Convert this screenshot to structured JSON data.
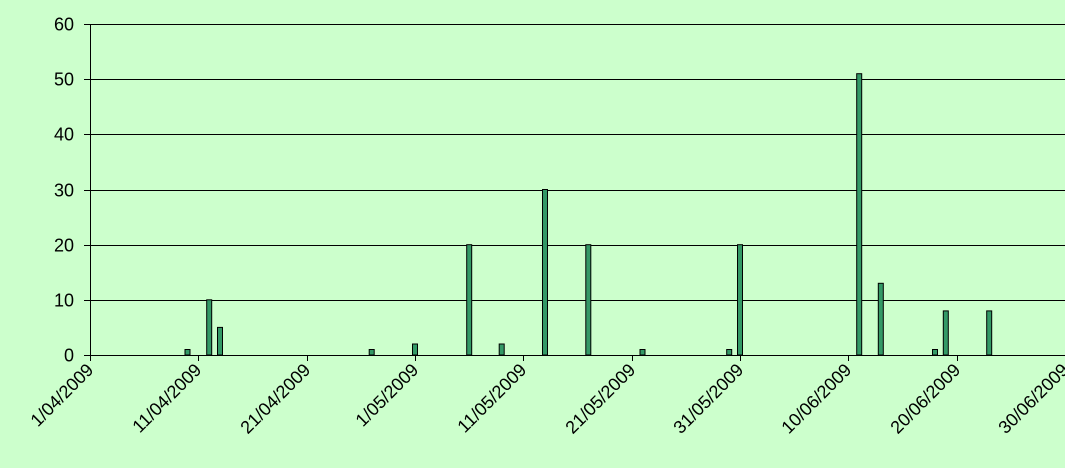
{
  "chart_data": {
    "type": "bar",
    "title": "",
    "xlabel": "",
    "ylabel": "",
    "ylim": [
      0,
      60
    ],
    "yticks": [
      "0",
      "10",
      "20",
      "30",
      "40",
      "50",
      "60"
    ],
    "x_range": [
      "2009-04-01",
      "2009-06-30"
    ],
    "xticks": [
      {
        "date": "2009-04-01",
        "label": "1/04/2009"
      },
      {
        "date": "2009-04-11",
        "label": "11/04/2009"
      },
      {
        "date": "2009-04-21",
        "label": "21/04/2009"
      },
      {
        "date": "2009-05-01",
        "label": "1/05/2009"
      },
      {
        "date": "2009-05-11",
        "label": "11/05/2009"
      },
      {
        "date": "2009-05-21",
        "label": "21/05/2009"
      },
      {
        "date": "2009-05-31",
        "label": "31/05/2009"
      },
      {
        "date": "2009-06-10",
        "label": "10/06/2009"
      },
      {
        "date": "2009-06-20",
        "label": "20/06/2009"
      },
      {
        "date": "2009-06-30",
        "label": "30/06/2009"
      }
    ],
    "series": [
      {
        "color": "#339966",
        "points": [
          {
            "x": "2009-04-10",
            "y": 1
          },
          {
            "x": "2009-04-12",
            "y": 10
          },
          {
            "x": "2009-04-13",
            "y": 5
          },
          {
            "x": "2009-04-27",
            "y": 1
          },
          {
            "x": "2009-05-01",
            "y": 2
          },
          {
            "x": "2009-05-06",
            "y": 20
          },
          {
            "x": "2009-05-09",
            "y": 2
          },
          {
            "x": "2009-05-13",
            "y": 30
          },
          {
            "x": "2009-05-17",
            "y": 20
          },
          {
            "x": "2009-05-22",
            "y": 1
          },
          {
            "x": "2009-05-30",
            "y": 1
          },
          {
            "x": "2009-05-31",
            "y": 20
          },
          {
            "x": "2009-06-11",
            "y": 51
          },
          {
            "x": "2009-06-13",
            "y": 13
          },
          {
            "x": "2009-06-18",
            "y": 1
          },
          {
            "x": "2009-06-19",
            "y": 8
          },
          {
            "x": "2009-06-23",
            "y": 8
          }
        ]
      }
    ],
    "grid": true,
    "legend": "none",
    "background_color": "#ccffcc",
    "axis_color": "#000000"
  }
}
